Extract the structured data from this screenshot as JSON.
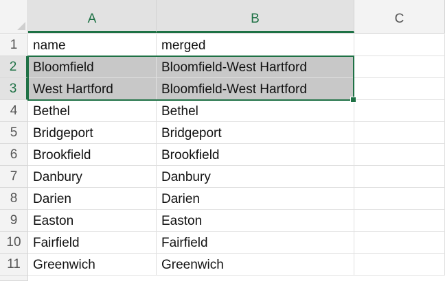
{
  "columns": [
    "A",
    "B",
    "C"
  ],
  "rows": [
    {
      "num": "1",
      "a": "name",
      "b": "merged"
    },
    {
      "num": "2",
      "a": "Bloomfield",
      "b": "Bloomfield-West Hartford"
    },
    {
      "num": "3",
      "a": "West Hartford",
      "b": "Bloomfield-West Hartford"
    },
    {
      "num": "4",
      "a": "Bethel",
      "b": "Bethel"
    },
    {
      "num": "5",
      "a": "Bridgeport",
      "b": "Bridgeport"
    },
    {
      "num": "6",
      "a": "Brookfield",
      "b": "Brookfield"
    },
    {
      "num": "7",
      "a": "Danbury",
      "b": "Danbury"
    },
    {
      "num": "8",
      "a": "Darien",
      "b": "Darien"
    },
    {
      "num": "9",
      "a": "Easton",
      "b": "Easton"
    },
    {
      "num": "10",
      "a": "Fairfield",
      "b": "Fairfield"
    },
    {
      "num": "11",
      "a": "Greenwich",
      "b": "Greenwich"
    }
  ],
  "selection": {
    "range": "A2:B3",
    "accent": "#1e7145",
    "highlight": "#c8c8c8"
  }
}
